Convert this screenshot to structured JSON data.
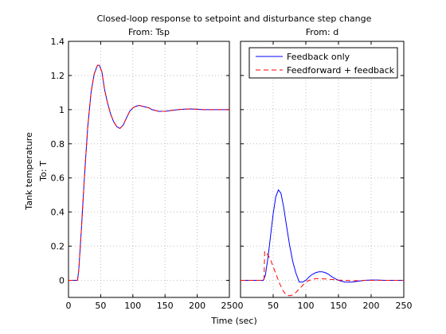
{
  "figure": {
    "title": "Closed-loop response to setpoint and disturbance step change",
    "xlabel": "Time (sec)",
    "ylabel": "Tank temperature",
    "output_label": "To: T"
  },
  "chart_data": [
    {
      "type": "line",
      "subtitle": "From: Tsp",
      "xlim": [
        0,
        250
      ],
      "ylim": [
        -0.1,
        1.4
      ],
      "xticks": [
        0,
        50,
        100,
        150,
        200,
        250
      ],
      "yticks": [
        0,
        0.2,
        0.4,
        0.6,
        0.8,
        1,
        1.2,
        1.4
      ],
      "ytick_labels": [
        "0",
        "0.2",
        "0.4",
        "0.6",
        "0.8",
        "1",
        "1.2",
        "1.4"
      ],
      "grid": true,
      "series": [
        {
          "name": "Feedback only",
          "color": "#0000ff",
          "style": "solid",
          "x": [
            0,
            14,
            16,
            20,
            25,
            30,
            35,
            40,
            45,
            48,
            52,
            56,
            60,
            65,
            70,
            75,
            80,
            85,
            90,
            95,
            100,
            105,
            110,
            115,
            120,
            125,
            130,
            140,
            150,
            160,
            170,
            180,
            190,
            200,
            210,
            220,
            230,
            240,
            250
          ],
          "y": [
            0,
            0,
            0.06,
            0.3,
            0.62,
            0.9,
            1.1,
            1.21,
            1.26,
            1.26,
            1.22,
            1.12,
            1.05,
            0.98,
            0.93,
            0.9,
            0.89,
            0.91,
            0.95,
            0.99,
            1.01,
            1.02,
            1.025,
            1.02,
            1.015,
            1.01,
            1.0,
            0.99,
            0.99,
            0.995,
            1.0,
            1.003,
            1.004,
            1.002,
            1.0,
            1.0,
            1.0,
            1.0,
            1.0
          ]
        },
        {
          "name": "Feedforward + feedback",
          "color": "#ff0000",
          "style": "dashed",
          "x": [
            0,
            14,
            16,
            20,
            25,
            30,
            35,
            40,
            45,
            48,
            52,
            56,
            60,
            65,
            70,
            75,
            80,
            85,
            90,
            95,
            100,
            105,
            110,
            115,
            120,
            125,
            130,
            140,
            150,
            160,
            170,
            180,
            190,
            200,
            210,
            220,
            230,
            240,
            250
          ],
          "y": [
            0,
            0,
            0.06,
            0.3,
            0.62,
            0.9,
            1.1,
            1.21,
            1.26,
            1.26,
            1.22,
            1.12,
            1.05,
            0.98,
            0.93,
            0.9,
            0.89,
            0.91,
            0.95,
            0.99,
            1.01,
            1.02,
            1.025,
            1.02,
            1.015,
            1.01,
            1.0,
            0.99,
            0.99,
            0.995,
            1.0,
            1.003,
            1.004,
            1.002,
            1.0,
            1.0,
            1.0,
            1.0,
            1.0
          ]
        }
      ]
    },
    {
      "type": "line",
      "subtitle": "From: d",
      "xlim": [
        0,
        250
      ],
      "ylim": [
        -0.1,
        1.4
      ],
      "xticks": [
        0,
        50,
        100,
        150,
        200,
        250
      ],
      "yticks": [
        0,
        0.2,
        0.4,
        0.6,
        0.8,
        1,
        1.2,
        1.4
      ],
      "grid": true,
      "legend": {
        "position": "top-right",
        "entries": [
          "Feedback only",
          "Feedforward + feedback"
        ]
      },
      "series": [
        {
          "name": "Feedback only",
          "color": "#0000ff",
          "style": "solid",
          "x": [
            0,
            35,
            38,
            42,
            46,
            50,
            54,
            58,
            62,
            66,
            70,
            75,
            80,
            85,
            90,
            95,
            100,
            105,
            110,
            115,
            120,
            125,
            130,
            135,
            140,
            145,
            150,
            155,
            160,
            170,
            180,
            190,
            200,
            210,
            220,
            230,
            240,
            250
          ],
          "y": [
            0,
            0,
            0.03,
            0.13,
            0.26,
            0.39,
            0.49,
            0.53,
            0.51,
            0.43,
            0.33,
            0.21,
            0.11,
            0.04,
            -0.01,
            -0.01,
            0.0,
            0.02,
            0.035,
            0.045,
            0.05,
            0.05,
            0.045,
            0.035,
            0.02,
            0.01,
            0.0,
            -0.005,
            -0.01,
            -0.01,
            -0.005,
            0.0,
            0.002,
            0.002,
            0.0,
            0.0,
            0.0,
            0.0
          ]
        },
        {
          "name": "Feedforward + feedback",
          "color": "#ff0000",
          "style": "dashed",
          "x": [
            0,
            36,
            37,
            40,
            45,
            50,
            55,
            60,
            65,
            70,
            75,
            80,
            85,
            90,
            95,
            100,
            105,
            110,
            115,
            120,
            130,
            140,
            150,
            160,
            170,
            180,
            190,
            200,
            220,
            250
          ],
          "y": [
            0,
            0,
            0.17,
            0.16,
            0.13,
            0.08,
            0.03,
            -0.02,
            -0.06,
            -0.085,
            -0.09,
            -0.085,
            -0.07,
            -0.05,
            -0.03,
            -0.01,
            0.0,
            0.005,
            0.01,
            0.01,
            0.008,
            0.005,
            0.002,
            0.0,
            -0.002,
            -0.002,
            0.0,
            0.0,
            0.0,
            0.0
          ]
        }
      ]
    }
  ]
}
